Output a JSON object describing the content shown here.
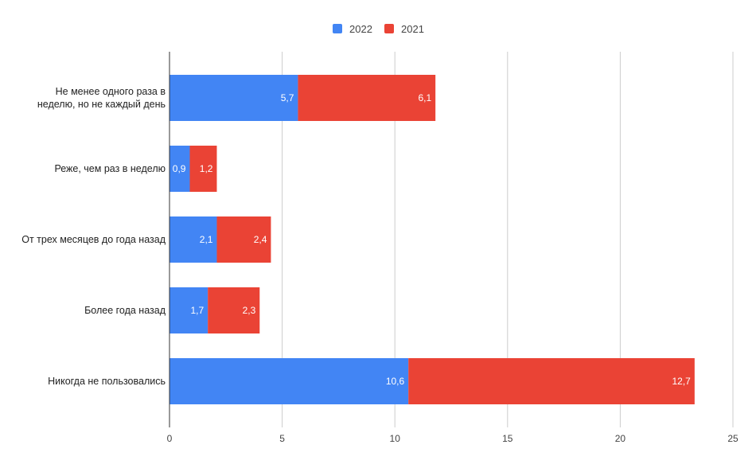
{
  "chart_data": {
    "type": "bar",
    "orientation": "horizontal",
    "stacked": true,
    "categories": [
      [
        "Не менее одного раза в",
        "неделю, но не каждый день"
      ],
      [
        "Реже, чем раз в неделю"
      ],
      [
        "От трех месяцев до года назад"
      ],
      [
        "Более года назад"
      ],
      [
        "Никогда не пользовались"
      ]
    ],
    "series": [
      {
        "name": "2022",
        "color": "#4285f4",
        "values": [
          5.7,
          0.9,
          2.1,
          1.7,
          10.6
        ],
        "labels": [
          "5,7",
          "0,9",
          "2,1",
          "1,7",
          "10,6"
        ]
      },
      {
        "name": "2021",
        "color": "#ea4335",
        "values": [
          6.1,
          1.2,
          2.4,
          2.3,
          12.7
        ],
        "labels": [
          "6,1",
          "1,2",
          "2,4",
          "2,3",
          "12,7"
        ]
      }
    ],
    "xlim": [
      0,
      25
    ],
    "xticks": [
      0,
      5,
      10,
      15,
      20,
      25
    ],
    "grid": true,
    "legend": "top-center",
    "title": "",
    "xlabel": "",
    "ylabel": ""
  }
}
